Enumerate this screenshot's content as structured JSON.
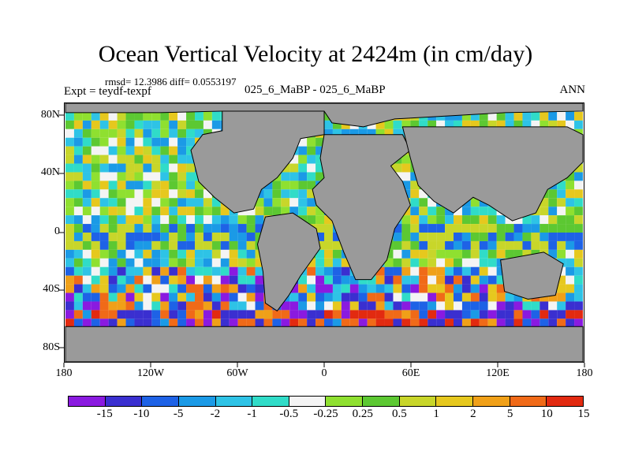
{
  "title": "Ocean Vertical Velocity at 2424m (in cm/day)",
  "stats": "rmsd= 12.3986 diff= 0.0553197",
  "expt": "Expt = teydf-texpf",
  "subtitle": "025_6_MaBP - 025_6_MaBP",
  "season": "ANN",
  "lat_labels": [
    "80N",
    "40N",
    "0",
    "40S",
    "80S"
  ],
  "lon_labels": [
    "180",
    "120W",
    "60W",
    "0",
    "60E",
    "120E",
    "180"
  ],
  "colorbar": {
    "labels": [
      "-15",
      "-10",
      "-5",
      "-2",
      "-1",
      "-0.5",
      "-0.25",
      "0.25",
      "0.5",
      "1",
      "2",
      "5",
      "10",
      "15"
    ],
    "colors": [
      "#8a1ae0",
      "#3a2fd0",
      "#1e62e6",
      "#1b9ae6",
      "#2ec3e6",
      "#30dcc8",
      "#f4f4f4",
      "#8fe030",
      "#5cc832",
      "#c8d62a",
      "#e6c81e",
      "#f0a018",
      "#f06a18",
      "#e22a10"
    ]
  },
  "map_colors": {
    "land": "#9a9a9a",
    "coast": "#000000"
  }
}
